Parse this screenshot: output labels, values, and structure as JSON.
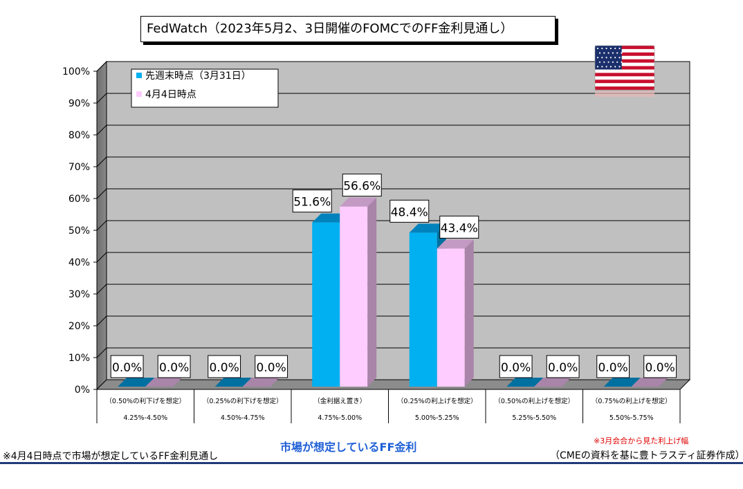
{
  "title": "FedWatch（2023年5月2、3日開催のFOMCでのFF金利見通し）",
  "footnote_left": "※4月4日時点で市場が想定しているFF金利見通し",
  "xaxis_title": "市場が想定しているFF金利",
  "note_red": "※3月会合から見た利上げ幅",
  "source": "（CMEの資料を基に豊トラスティ証券作成）",
  "flag_icon": "us-flag-icon",
  "colors": {
    "series1": "#00b0f0",
    "series2": "#ffccff",
    "plot_bg": "#c0c0c0",
    "title_blue": "#1f5fd6",
    "note_red": "#e00000",
    "rule": "#1f3a78"
  },
  "chart_data": {
    "type": "bar",
    "title": "FedWatch（2023年5月2、3日開催のFOMCでのFF金利見通し）",
    "xlabel": "市場が想定しているFF金利",
    "ylabel": "",
    "ylim": [
      0,
      100
    ],
    "yticks": [
      "0%",
      "10%",
      "20%",
      "30%",
      "40%",
      "50%",
      "60%",
      "70%",
      "80%",
      "90%",
      "100%"
    ],
    "grid": true,
    "legend_position": "top-left",
    "categories": [
      {
        "top": "（0.50%の利下げを想定）",
        "bottom": "4.25%-4.50%"
      },
      {
        "top": "（0.25%の利下げを想定）",
        "bottom": "4.50%-4.75%"
      },
      {
        "top": "（金利据え置き）",
        "bottom": "4.75%-5.00%"
      },
      {
        "top": "（0.25%の利上げを想定）",
        "bottom": "5.00%-5.25%"
      },
      {
        "top": "（0.50%の利上げを想定）",
        "bottom": "5.25%-5.50%"
      },
      {
        "top": "（0.75%の利上げを想定）",
        "bottom": "5.50%-5.75%"
      }
    ],
    "series": [
      {
        "name": "先週末時点（3月31日）",
        "values": [
          0.0,
          0.0,
          51.6,
          48.4,
          0.0,
          0.0
        ],
        "labels": [
          "0.0%",
          "0.0%",
          "51.6%",
          "48.4%",
          "0.0%",
          "0.0%"
        ]
      },
      {
        "name": "4月4日時点",
        "values": [
          0.0,
          0.0,
          56.6,
          43.4,
          0.0,
          0.0
        ],
        "labels": [
          "0.0%",
          "0.0%",
          "56.6%",
          "43.4%",
          "0.0%",
          "0.0%"
        ]
      }
    ]
  }
}
